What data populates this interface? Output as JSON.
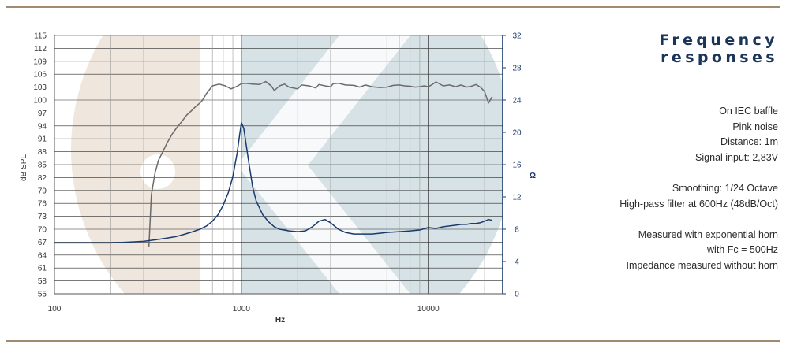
{
  "header": {
    "title": "Frequency responses"
  },
  "notes": {
    "group1": [
      "On IEC baffle",
      "Pink noise",
      "Distance: 1m",
      "Signal input: 2,83V"
    ],
    "group2": [
      "Smoothing: 1/24 Octave",
      "High-pass filter at 600Hz (48dB/Oct)"
    ],
    "group3": [
      "Measured with exponential horn",
      "with Fc = 500Hz",
      "Impedance measured without horn"
    ]
  },
  "colors": {
    "spl": "#6b6b6b",
    "impedance": "#1a3a6e",
    "right_axis": "#1a3a6e",
    "band_beige": "#efe6dd",
    "band_blue": "#d6e2e6",
    "rule": "#a08a72"
  },
  "chart_data": {
    "type": "line",
    "xlabel": "Hz",
    "ylabel": "dB SPL",
    "y2label": "Ω",
    "x_scale": "log",
    "xlim": [
      100,
      25000
    ],
    "ylim": [
      55,
      115
    ],
    "y2lim": [
      0,
      32
    ],
    "x_ticks": [
      "100",
      "1000",
      "10000"
    ],
    "y_ticks": [
      "115",
      "112",
      "109",
      "106",
      "103",
      "100",
      "97",
      "94",
      "91",
      "88",
      "85",
      "82",
      "79",
      "76",
      "73",
      "70",
      "67",
      "64",
      "61",
      "58",
      "55"
    ],
    "y2_ticks": [
      "32",
      "28",
      "24",
      "20",
      "16",
      "12",
      "8",
      "4",
      "0"
    ],
    "grid": true,
    "series": [
      {
        "axis": "left",
        "x": [
          320,
          330,
          345,
          360,
          380,
          400,
          425,
          450,
          480,
          510,
          540,
          570,
          600,
          620,
          650,
          700,
          760,
          820,
          880,
          950,
          1000,
          1050,
          1150,
          1250,
          1350,
          1450,
          1500,
          1600,
          1700,
          1800,
          2000,
          2100,
          2300,
          2500,
          2600,
          2800,
          3000,
          3100,
          3300,
          3600,
          4000,
          4300,
          4600,
          5000,
          5500,
          6000,
          6500,
          7000,
          7500,
          8000,
          8500,
          9000,
          9500,
          10000,
          10500,
          11000,
          12000,
          13000,
          14000,
          15000,
          16000,
          17000,
          18000,
          19000,
          20000,
          21000,
          22000
        ],
        "values": [
          66,
          78,
          83,
          86,
          88,
          90,
          92,
          93.5,
          95,
          96.5,
          97.5,
          98.5,
          99.3,
          100,
          101.5,
          103.3,
          103.7,
          103.3,
          102.6,
          103.2,
          103.8,
          103.9,
          103.7,
          103.6,
          104.3,
          103.2,
          102.2,
          103.3,
          103.7,
          103.0,
          102.6,
          103.5,
          103.3,
          102.8,
          103.6,
          103.3,
          103.1,
          103.8,
          103.9,
          103.5,
          103.4,
          103.0,
          103.5,
          103.1,
          102.9,
          103.0,
          103.4,
          103.5,
          103.3,
          103.2,
          103.0,
          103.1,
          103.3,
          103.1,
          103.6,
          104.2,
          103.3,
          103.5,
          103.1,
          103.5,
          103.0,
          103.2,
          103.6,
          103.0,
          102.0,
          99.3,
          100.8
        ]
      },
      {
        "axis": "right",
        "x": [
          100,
          150,
          200,
          250,
          300,
          350,
          400,
          450,
          500,
          550,
          600,
          650,
          700,
          750,
          800,
          850,
          900,
          950,
          980,
          1000,
          1030,
          1060,
          1100,
          1150,
          1200,
          1300,
          1400,
          1500,
          1600,
          1800,
          2000,
          2200,
          2400,
          2600,
          2800,
          3000,
          3300,
          3600,
          4000,
          4500,
          5000,
          5500,
          6000,
          7000,
          8000,
          9000,
          10000,
          11000,
          12000,
          13000,
          14000,
          15000,
          16000,
          17000,
          18000,
          19000,
          20000,
          21000,
          22000
        ],
        "values": [
          6.3,
          6.3,
          6.3,
          6.4,
          6.5,
          6.7,
          6.9,
          7.1,
          7.4,
          7.7,
          8.0,
          8.4,
          9.0,
          9.8,
          11.0,
          12.5,
          14.5,
          17.5,
          19.8,
          21.2,
          20.5,
          18.5,
          16.0,
          13.2,
          11.5,
          9.8,
          8.9,
          8.3,
          8.0,
          7.8,
          7.7,
          7.8,
          8.3,
          9.0,
          9.2,
          8.8,
          8.0,
          7.6,
          7.4,
          7.4,
          7.4,
          7.5,
          7.6,
          7.7,
          7.8,
          7.9,
          8.2,
          8.1,
          8.3,
          8.4,
          8.5,
          8.6,
          8.6,
          8.7,
          8.7,
          8.8,
          9.0,
          9.2,
          9.1
        ]
      }
    ]
  }
}
